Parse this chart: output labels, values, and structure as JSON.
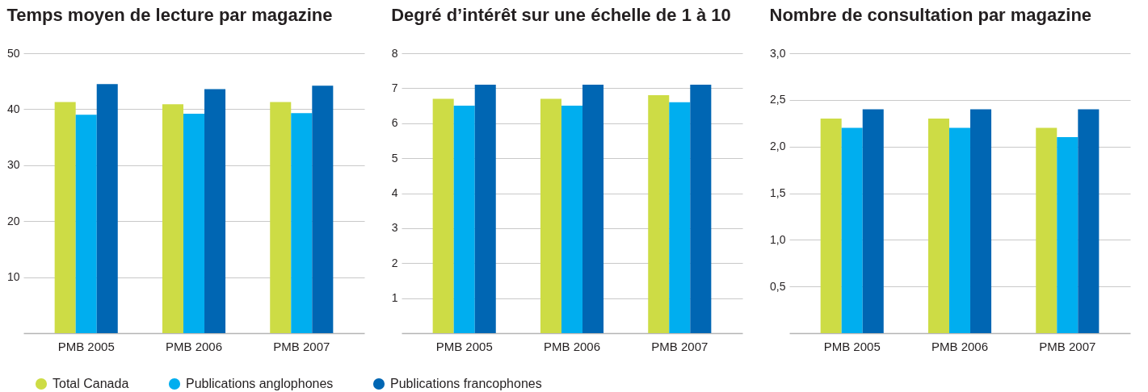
{
  "chart_data": [
    {
      "type": "bar",
      "title": "Temps moyen de lecture par magazine",
      "categories": [
        "PMB 2005",
        "PMB 2006",
        "PMB 2007"
      ],
      "series": [
        {
          "name": "Total Canada",
          "color": "#cddc45",
          "values": [
            41.3,
            40.9,
            41.3
          ]
        },
        {
          "name": "Publications anglophones",
          "color": "#00aeef",
          "values": [
            39.0,
            39.2,
            39.3
          ]
        },
        {
          "name": "Publications francophones",
          "color": "#0066b3",
          "values": [
            44.5,
            43.6,
            44.2
          ]
        }
      ],
      "ylim": [
        0,
        50
      ],
      "yticks": [
        10,
        20,
        30,
        40,
        50
      ],
      "grid": "y",
      "legend": "bottom"
    },
    {
      "type": "bar",
      "title": "Degré d’intérêt sur une échelle de 1 à 10",
      "categories": [
        "PMB 2005",
        "PMB 2006",
        "PMB 2007"
      ],
      "series": [
        {
          "name": "Total Canada",
          "color": "#cddc45",
          "values": [
            6.7,
            6.7,
            6.8
          ]
        },
        {
          "name": "Publications anglophones",
          "color": "#00aeef",
          "values": [
            6.5,
            6.5,
            6.6
          ]
        },
        {
          "name": "Publications francophones",
          "color": "#0066b3",
          "values": [
            7.1,
            7.1,
            7.1
          ]
        }
      ],
      "ylim": [
        0,
        8
      ],
      "yticks": [
        1,
        2,
        3,
        4,
        5,
        6,
        7,
        8
      ],
      "grid": "y",
      "legend": "bottom"
    },
    {
      "type": "bar",
      "title": "Nombre de consultation par magazine",
      "categories": [
        "PMB 2005",
        "PMB 2006",
        "PMB 2007"
      ],
      "series": [
        {
          "name": "Total Canada",
          "color": "#cddc45",
          "values": [
            2.3,
            2.3,
            2.2
          ]
        },
        {
          "name": "Publications anglophones",
          "color": "#00aeef",
          "values": [
            2.2,
            2.2,
            2.1
          ]
        },
        {
          "name": "Publications francophones",
          "color": "#0066b3",
          "values": [
            2.4,
            2.4,
            2.4
          ]
        }
      ],
      "ylim": [
        0,
        3
      ],
      "yticks": [
        {
          "value": 0.5,
          "label": "0,5"
        },
        {
          "value": 1,
          "label": "1,0"
        },
        {
          "value": 1.5,
          "label": "1,5"
        },
        {
          "value": 2,
          "label": "2,0"
        },
        {
          "value": 2.5,
          "label": "2,5"
        },
        {
          "value": 3,
          "label": "3,0"
        }
      ],
      "grid": "y",
      "legend": "bottom"
    }
  ]
}
